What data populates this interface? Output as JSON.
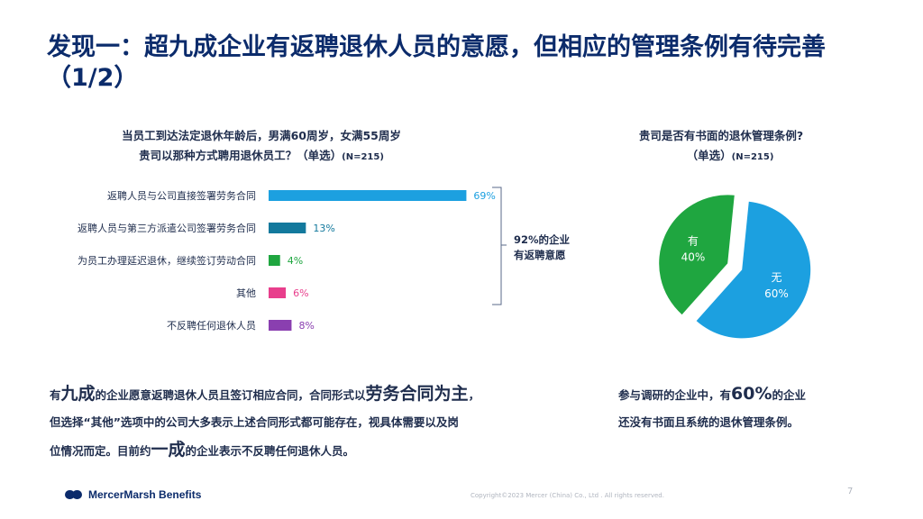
{
  "title": "发现一：超九成企业有返聘退休人员的意愿，但相应的管理条例有待完善（1/2）",
  "left_question": {
    "line1": "当员工到达法定退休年龄后，男满60周岁，女满55周岁",
    "line2": "贵司以那种方式聘用退休员工？（单选）",
    "n": "(N=215)"
  },
  "right_question": {
    "line1": "贵司是否有书面的退休管理条例?",
    "line2": "（单选）",
    "n": "(N=215)"
  },
  "bracket_note": [
    "92%的企业",
    "有返聘意愿"
  ],
  "chart_data": [
    {
      "type": "bar",
      "orientation": "horizontal",
      "categories": [
        "返聘人员与公司直接签署劳务合同",
        "返聘人员与第三方派遣公司签署劳务合同",
        "为员工办理延迟退休，继续签订劳动合同",
        "其他",
        "不反聘任何退休人员"
      ],
      "values": [
        69,
        13,
        4,
        6,
        8
      ],
      "labels": [
        "69%",
        "13%",
        "4%",
        "6%",
        "8%"
      ],
      "colors": [
        "#1ca0e0",
        "#13799d",
        "#1fa640",
        "#e83e8c",
        "#8a3fb0"
      ],
      "xlim": [
        0,
        100
      ]
    },
    {
      "type": "pie",
      "categories": [
        "无",
        "有"
      ],
      "values": [
        60,
        40
      ],
      "labels": [
        "60%",
        "40%"
      ],
      "colors": [
        "#1ca0e0",
        "#1fa640"
      ]
    }
  ],
  "summary_left": {
    "p1_pre": "有",
    "p1_big1": "九成",
    "p1_mid": "的企业愿意返聘退休人员且签订相应合同，合同形式以",
    "p1_big2": "劳务合同为主",
    "p1_post": "，",
    "p2": "但选择“其他”选项中的公司大多表示上述合同形式都可能存在，视具体需要以及岗",
    "p3_pre": "位情况而定。目前约",
    "p3_big": "一成",
    "p3_post": "的企业表示不反聘任何退休人员。"
  },
  "summary_right": {
    "pre": "参与调研的企业中，有",
    "big": "60%",
    "mid": "的企业",
    "line2": "还没有书面且系统的退休管理条例。"
  },
  "footer": {
    "logo_text": "MercerMarsh Benefits",
    "copyright": "Copyright©2023 Mercer (China) Co., Ltd . All rights reserved.",
    "page": "7"
  }
}
